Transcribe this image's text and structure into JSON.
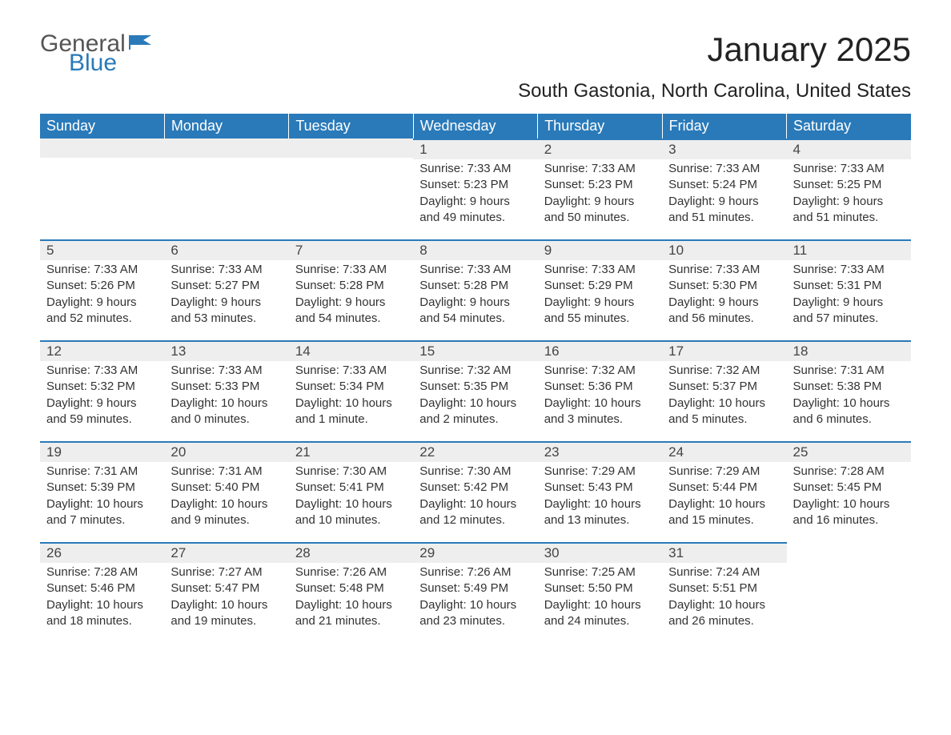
{
  "logo": {
    "word1": "General",
    "word2": "Blue"
  },
  "title": "January 2025",
  "subtitle": "South Gastonia, North Carolina, United States",
  "colors": {
    "header_bg": "#2a7ab9",
    "header_text": "#ffffff",
    "daynum_bg": "#eeeeee",
    "cell_border_top": "#2a7ab9",
    "body_text": "#333333",
    "logo_gray": "#555555",
    "logo_blue": "#2a7ab9"
  },
  "weekdays": [
    "Sunday",
    "Monday",
    "Tuesday",
    "Wednesday",
    "Thursday",
    "Friday",
    "Saturday"
  ],
  "weeks": [
    [
      null,
      null,
      null,
      {
        "n": "1",
        "sunrise": "Sunrise: 7:33 AM",
        "sunset": "Sunset: 5:23 PM",
        "day1": "Daylight: 9 hours",
        "day2": "and 49 minutes."
      },
      {
        "n": "2",
        "sunrise": "Sunrise: 7:33 AM",
        "sunset": "Sunset: 5:23 PM",
        "day1": "Daylight: 9 hours",
        "day2": "and 50 minutes."
      },
      {
        "n": "3",
        "sunrise": "Sunrise: 7:33 AM",
        "sunset": "Sunset: 5:24 PM",
        "day1": "Daylight: 9 hours",
        "day2": "and 51 minutes."
      },
      {
        "n": "4",
        "sunrise": "Sunrise: 7:33 AM",
        "sunset": "Sunset: 5:25 PM",
        "day1": "Daylight: 9 hours",
        "day2": "and 51 minutes."
      }
    ],
    [
      {
        "n": "5",
        "sunrise": "Sunrise: 7:33 AM",
        "sunset": "Sunset: 5:26 PM",
        "day1": "Daylight: 9 hours",
        "day2": "and 52 minutes."
      },
      {
        "n": "6",
        "sunrise": "Sunrise: 7:33 AM",
        "sunset": "Sunset: 5:27 PM",
        "day1": "Daylight: 9 hours",
        "day2": "and 53 minutes."
      },
      {
        "n": "7",
        "sunrise": "Sunrise: 7:33 AM",
        "sunset": "Sunset: 5:28 PM",
        "day1": "Daylight: 9 hours",
        "day2": "and 54 minutes."
      },
      {
        "n": "8",
        "sunrise": "Sunrise: 7:33 AM",
        "sunset": "Sunset: 5:28 PM",
        "day1": "Daylight: 9 hours",
        "day2": "and 54 minutes."
      },
      {
        "n": "9",
        "sunrise": "Sunrise: 7:33 AM",
        "sunset": "Sunset: 5:29 PM",
        "day1": "Daylight: 9 hours",
        "day2": "and 55 minutes."
      },
      {
        "n": "10",
        "sunrise": "Sunrise: 7:33 AM",
        "sunset": "Sunset: 5:30 PM",
        "day1": "Daylight: 9 hours",
        "day2": "and 56 minutes."
      },
      {
        "n": "11",
        "sunrise": "Sunrise: 7:33 AM",
        "sunset": "Sunset: 5:31 PM",
        "day1": "Daylight: 9 hours",
        "day2": "and 57 minutes."
      }
    ],
    [
      {
        "n": "12",
        "sunrise": "Sunrise: 7:33 AM",
        "sunset": "Sunset: 5:32 PM",
        "day1": "Daylight: 9 hours",
        "day2": "and 59 minutes."
      },
      {
        "n": "13",
        "sunrise": "Sunrise: 7:33 AM",
        "sunset": "Sunset: 5:33 PM",
        "day1": "Daylight: 10 hours",
        "day2": "and 0 minutes."
      },
      {
        "n": "14",
        "sunrise": "Sunrise: 7:33 AM",
        "sunset": "Sunset: 5:34 PM",
        "day1": "Daylight: 10 hours",
        "day2": "and 1 minute."
      },
      {
        "n": "15",
        "sunrise": "Sunrise: 7:32 AM",
        "sunset": "Sunset: 5:35 PM",
        "day1": "Daylight: 10 hours",
        "day2": "and 2 minutes."
      },
      {
        "n": "16",
        "sunrise": "Sunrise: 7:32 AM",
        "sunset": "Sunset: 5:36 PM",
        "day1": "Daylight: 10 hours",
        "day2": "and 3 minutes."
      },
      {
        "n": "17",
        "sunrise": "Sunrise: 7:32 AM",
        "sunset": "Sunset: 5:37 PM",
        "day1": "Daylight: 10 hours",
        "day2": "and 5 minutes."
      },
      {
        "n": "18",
        "sunrise": "Sunrise: 7:31 AM",
        "sunset": "Sunset: 5:38 PM",
        "day1": "Daylight: 10 hours",
        "day2": "and 6 minutes."
      }
    ],
    [
      {
        "n": "19",
        "sunrise": "Sunrise: 7:31 AM",
        "sunset": "Sunset: 5:39 PM",
        "day1": "Daylight: 10 hours",
        "day2": "and 7 minutes."
      },
      {
        "n": "20",
        "sunrise": "Sunrise: 7:31 AM",
        "sunset": "Sunset: 5:40 PM",
        "day1": "Daylight: 10 hours",
        "day2": "and 9 minutes."
      },
      {
        "n": "21",
        "sunrise": "Sunrise: 7:30 AM",
        "sunset": "Sunset: 5:41 PM",
        "day1": "Daylight: 10 hours",
        "day2": "and 10 minutes."
      },
      {
        "n": "22",
        "sunrise": "Sunrise: 7:30 AM",
        "sunset": "Sunset: 5:42 PM",
        "day1": "Daylight: 10 hours",
        "day2": "and 12 minutes."
      },
      {
        "n": "23",
        "sunrise": "Sunrise: 7:29 AM",
        "sunset": "Sunset: 5:43 PM",
        "day1": "Daylight: 10 hours",
        "day2": "and 13 minutes."
      },
      {
        "n": "24",
        "sunrise": "Sunrise: 7:29 AM",
        "sunset": "Sunset: 5:44 PM",
        "day1": "Daylight: 10 hours",
        "day2": "and 15 minutes."
      },
      {
        "n": "25",
        "sunrise": "Sunrise: 7:28 AM",
        "sunset": "Sunset: 5:45 PM",
        "day1": "Daylight: 10 hours",
        "day2": "and 16 minutes."
      }
    ],
    [
      {
        "n": "26",
        "sunrise": "Sunrise: 7:28 AM",
        "sunset": "Sunset: 5:46 PM",
        "day1": "Daylight: 10 hours",
        "day2": "and 18 minutes."
      },
      {
        "n": "27",
        "sunrise": "Sunrise: 7:27 AM",
        "sunset": "Sunset: 5:47 PM",
        "day1": "Daylight: 10 hours",
        "day2": "and 19 minutes."
      },
      {
        "n": "28",
        "sunrise": "Sunrise: 7:26 AM",
        "sunset": "Sunset: 5:48 PM",
        "day1": "Daylight: 10 hours",
        "day2": "and 21 minutes."
      },
      {
        "n": "29",
        "sunrise": "Sunrise: 7:26 AM",
        "sunset": "Sunset: 5:49 PM",
        "day1": "Daylight: 10 hours",
        "day2": "and 23 minutes."
      },
      {
        "n": "30",
        "sunrise": "Sunrise: 7:25 AM",
        "sunset": "Sunset: 5:50 PM",
        "day1": "Daylight: 10 hours",
        "day2": "and 24 minutes."
      },
      {
        "n": "31",
        "sunrise": "Sunrise: 7:24 AM",
        "sunset": "Sunset: 5:51 PM",
        "day1": "Daylight: 10 hours",
        "day2": "and 26 minutes."
      },
      null
    ]
  ]
}
